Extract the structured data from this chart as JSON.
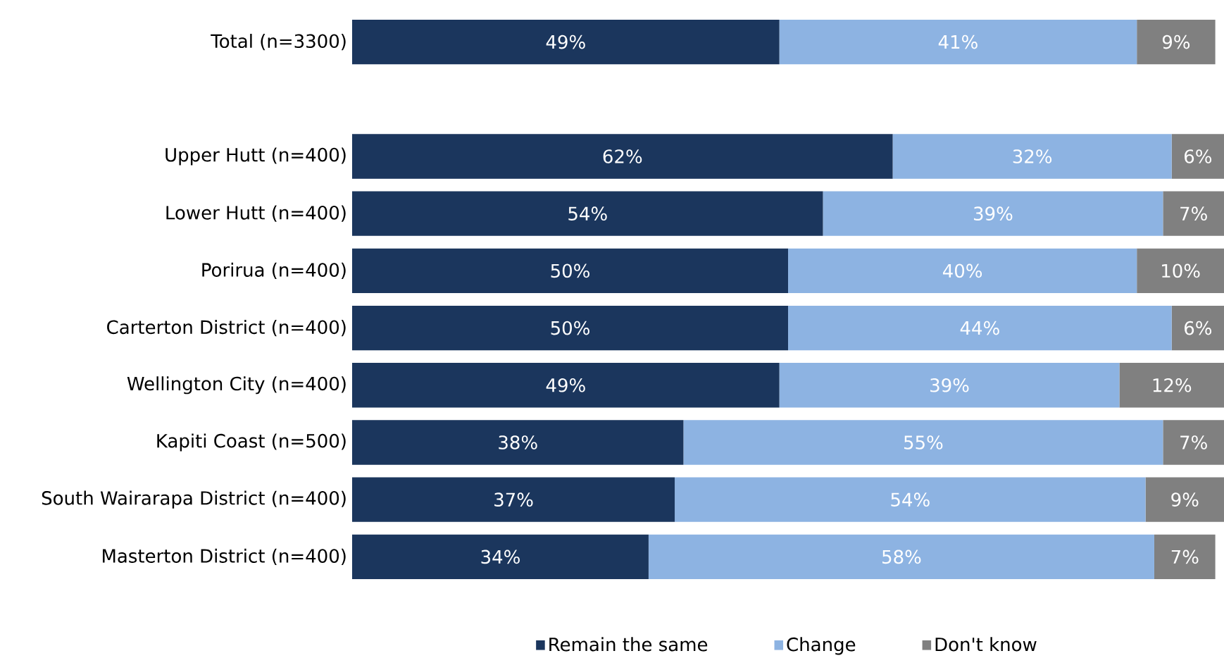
{
  "chart_data": {
    "type": "bar",
    "orientation": "horizontal",
    "stacked": true,
    "categories": [
      "Total (n=3300)",
      null,
      "Upper Hutt (n=400)",
      "Lower Hutt (n=400)",
      "Porirua (n=400)",
      "Carterton District (n=400)",
      "Wellington City (n=400)",
      "Kapiti Coast (n=500)",
      "South Wairarapa District (n=400)",
      "Masterton District (n=400)"
    ],
    "series": [
      {
        "name": "Remain the same",
        "color": "#1b365d",
        "values": [
          49,
          null,
          62,
          54,
          50,
          50,
          49,
          38,
          37,
          34
        ],
        "value_labels": [
          "49%",
          null,
          "62%",
          "54%",
          "50%",
          "50%",
          "49%",
          "38%",
          "37%",
          "34%"
        ]
      },
      {
        "name": "Change",
        "color": "#8db3e2",
        "values": [
          41,
          null,
          32,
          39,
          40,
          44,
          39,
          55,
          54,
          58
        ],
        "value_labels": [
          "41%",
          null,
          "32%",
          "39%",
          "40%",
          "44%",
          "39%",
          "55%",
          "54%",
          "58%"
        ]
      },
      {
        "name": "Don't know",
        "color": "#808080",
        "values": [
          9,
          null,
          6,
          7,
          10,
          6,
          12,
          7,
          9,
          7
        ],
        "value_labels": [
          "9%",
          null,
          "6%",
          "7%",
          "10%",
          "6%",
          "12%",
          "7%",
          "9%",
          "7%"
        ]
      }
    ],
    "xlim": [
      0,
      100
    ],
    "tick_labels": "y",
    "legend": "bottom"
  }
}
